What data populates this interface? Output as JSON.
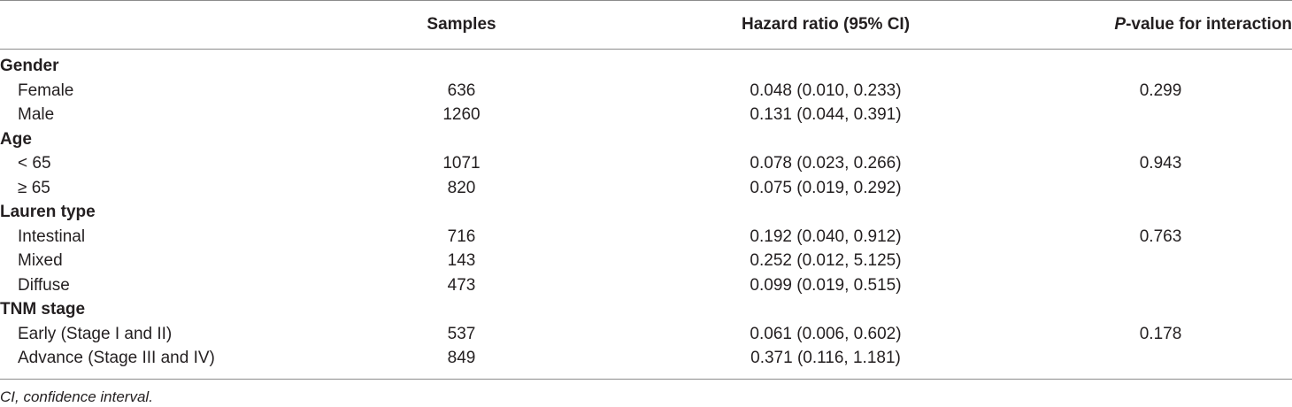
{
  "table": {
    "headers": {
      "label": "",
      "samples": "Samples",
      "hazard_ratio": "Hazard ratio (95% CI)",
      "p_value_italic": "P",
      "p_value_rest": "-value for interaction"
    },
    "groups": [
      {
        "name": "Gender",
        "rows": [
          {
            "label": "Female",
            "samples": "636",
            "hr": "0.048 (0.010, 0.233)",
            "p": "0.299"
          },
          {
            "label": "Male",
            "samples": "1260",
            "hr": "0.131 (0.044, 0.391)",
            "p": ""
          }
        ]
      },
      {
        "name": "Age",
        "rows": [
          {
            "label": "< 65",
            "samples": "1071",
            "hr": "0.078 (0.023, 0.266)",
            "p": "0.943"
          },
          {
            "label": "≥ 65",
            "samples": "820",
            "hr": "0.075 (0.019, 0.292)",
            "p": ""
          }
        ]
      },
      {
        "name": "Lauren type",
        "rows": [
          {
            "label": "Intestinal",
            "samples": "716",
            "hr": "0.192 (0.040, 0.912)",
            "p": "0.763"
          },
          {
            "label": "Mixed",
            "samples": "143",
            "hr": "0.252 (0.012, 5.125)",
            "p": ""
          },
          {
            "label": "Diffuse",
            "samples": "473",
            "hr": "0.099 (0.019, 0.515)",
            "p": ""
          }
        ]
      },
      {
        "name": "TNM stage",
        "rows": [
          {
            "label": "Early (Stage I and II)",
            "samples": "537",
            "hr": "0.061 (0.006, 0.602)",
            "p": "0.178"
          },
          {
            "label": "Advance (Stage III and IV)",
            "samples": "849",
            "hr": "0.371 (0.116, 1.181)",
            "p": ""
          }
        ]
      }
    ]
  },
  "footnote": "CI, confidence interval."
}
